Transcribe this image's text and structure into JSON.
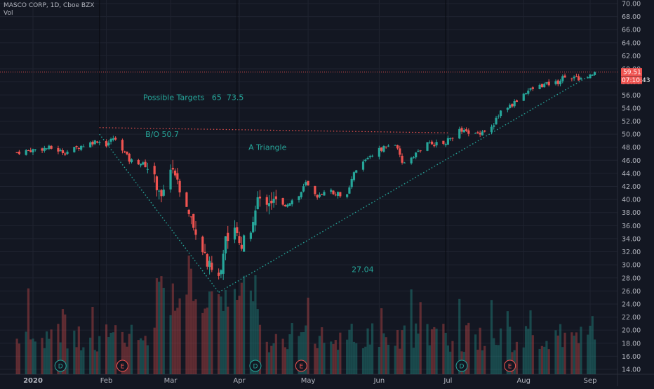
{
  "header": {
    "symbol_line": "MASCO CORP, 1D, Cboe BZX",
    "volume_label": "Vol"
  },
  "price_axis": {
    "ticks": [
      "70.00",
      "68.00",
      "66.00",
      "64.00",
      "62.00",
      "60.00",
      "58.00",
      "56.00",
      "54.00",
      "52.00",
      "50.00",
      "48.00",
      "46.00",
      "44.00",
      "42.00",
      "40.00",
      "38.00",
      "36.00",
      "34.00",
      "32.00",
      "30.00",
      "28.00",
      "26.00",
      "24.00",
      "22.00",
      "20.00",
      "18.00",
      "16.00",
      "14.00"
    ],
    "last_price_label": "59.51",
    "countdown_label": "07:10:43"
  },
  "time_axis": {
    "labels": [
      "2020",
      "Feb",
      "Mar",
      "Apr",
      "May",
      "Jun",
      "Jul",
      "Aug",
      "Sep"
    ]
  },
  "annotations": {
    "targets": "Possible Targets   65  73.5",
    "breakout": "B/O 50.7",
    "pattern": "A Triangle",
    "low": "27.04"
  },
  "event_markers": [
    "D",
    "E",
    "D",
    "E",
    "D",
    "E"
  ],
  "colors": {
    "background": "#131722",
    "grid": "#1f2330",
    "up": "#26a69a",
    "down": "#ef5350",
    "text": "#b2b5be",
    "annotation": "#26a69a",
    "resistance": "#ef5350",
    "trendline": "#26a69a"
  },
  "chart_data": {
    "type": "candlestick",
    "title": "MASCO CORP, 1D, Cboe BZX",
    "y_range": [
      13.5,
      70.5
    ],
    "timeline_start": "2020-01-02",
    "timeline_end": "2020-09-03",
    "close_path": [
      [
        "2019-12-26",
        47.2
      ],
      [
        "2020-01-02",
        47.6
      ],
      [
        "2020-01-09",
        47.9
      ],
      [
        "2020-01-16",
        47.2
      ],
      [
        "2020-01-23",
        48.2
      ],
      [
        "2020-01-30",
        49.0
      ],
      [
        "2020-02-03",
        48.4
      ],
      [
        "2020-02-06",
        49.4
      ],
      [
        "2020-02-10",
        47.8
      ],
      [
        "2020-02-13",
        46.0
      ],
      [
        "2020-02-18",
        45.6
      ],
      [
        "2020-02-21",
        45.0
      ],
      [
        "2020-02-24",
        43.0
      ],
      [
        "2020-02-27",
        41.0
      ],
      [
        "2020-03-02",
        44.5
      ],
      [
        "2020-03-05",
        42.0
      ],
      [
        "2020-03-09",
        38.5
      ],
      [
        "2020-03-12",
        35.5
      ],
      [
        "2020-03-16",
        33.0
      ],
      [
        "2020-03-18",
        30.5
      ],
      [
        "2020-03-23",
        27.5
      ],
      [
        "2020-03-26",
        34.5
      ],
      [
        "2020-03-30",
        34.8
      ],
      [
        "2020-04-02",
        33.0
      ],
      [
        "2020-04-06",
        36.0
      ],
      [
        "2020-04-09",
        39.5
      ],
      [
        "2020-04-14",
        40.0
      ],
      [
        "2020-04-20",
        39.0
      ],
      [
        "2020-04-27",
        40.5
      ],
      [
        "2020-04-30",
        42.5
      ],
      [
        "2020-05-05",
        40.0
      ],
      [
        "2020-05-08",
        41.5
      ],
      [
        "2020-05-13",
        41.0
      ],
      [
        "2020-05-18",
        40.5
      ],
      [
        "2020-05-21",
        44.0
      ],
      [
        "2020-05-27",
        46.5
      ],
      [
        "2020-06-03",
        48.0
      ],
      [
        "2020-06-08",
        48.5
      ],
      [
        "2020-06-11",
        45.5
      ],
      [
        "2020-06-15",
        46.5
      ],
      [
        "2020-06-22",
        48.5
      ],
      [
        "2020-06-29",
        48.5
      ],
      [
        "2020-07-06",
        50.5
      ],
      [
        "2020-07-13",
        50.0
      ],
      [
        "2020-07-20",
        51.0
      ],
      [
        "2020-07-24",
        53.5
      ],
      [
        "2020-07-29",
        54.5
      ],
      [
        "2020-08-04",
        56.5
      ],
      [
        "2020-08-11",
        57.5
      ],
      [
        "2020-08-18",
        58.0
      ],
      [
        "2020-08-21",
        59.0
      ],
      [
        "2020-08-26",
        58.5
      ],
      [
        "2020-08-31",
        58.5
      ],
      [
        "2020-09-03",
        59.5
      ]
    ],
    "volume_axis_max": 10,
    "last_price": 59.51,
    "resistance": {
      "start": "2020-01-31",
      "end": "2020-07-01",
      "price": 51.0
    },
    "descending_line": {
      "start": [
        "2020-01-31",
        50.0
      ],
      "end": [
        "2020-03-23",
        25.8
      ]
    },
    "ascending_line": {
      "start": [
        "2020-03-23",
        25.8
      ],
      "end": [
        "2020-09-01",
        59.0
      ]
    },
    "vertical_separators": [
      "2020-01-31",
      "2020-03-31",
      "2020-06-30"
    ],
    "event_dates": [
      "2020-01-14",
      "2020-02-10",
      "2020-04-08",
      "2020-04-28",
      "2020-07-07",
      "2020-07-28"
    ],
    "annotation_positions": [
      [
        "2020-02-19",
        55.2
      ],
      [
        "2020-02-20",
        49.6
      ],
      [
        "2020-04-05",
        47.6
      ],
      [
        "2020-05-20",
        28.9
      ]
    ]
  }
}
